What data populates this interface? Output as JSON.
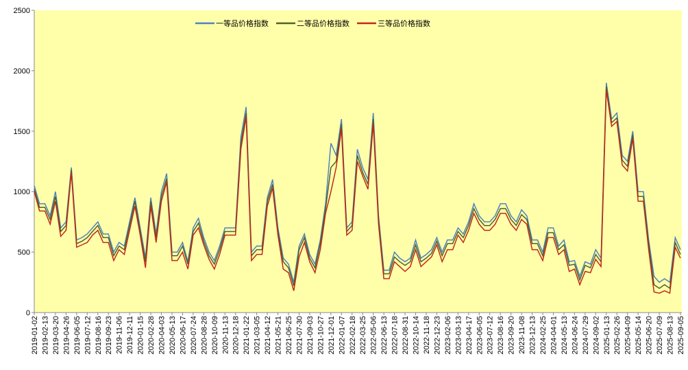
{
  "chart_data": {
    "type": "line",
    "categories": [
      "2019-01-02",
      null,
      "2019-02-13",
      null,
      "2019-03-20",
      null,
      "2019-04-26",
      null,
      "2019-06-05",
      null,
      "2019-07-12",
      null,
      "2019-08-16",
      null,
      "2019-09-23",
      null,
      "2019-11-06",
      null,
      "2019-12-11",
      null,
      "2020-01-15",
      null,
      "2020-02-28",
      null,
      "2020-04-03",
      null,
      "2020-05-13",
      null,
      "2020-06-17",
      null,
      "2020-07-24",
      null,
      "2020-08-28",
      null,
      "2020-10-09",
      null,
      "2020-11-13",
      null,
      "2020-12-18",
      null,
      "2021-01-22",
      null,
      "2021-03-05",
      null,
      "2021-04-12",
      null,
      "2021-05-21",
      null,
      "2021-06-25",
      null,
      "2021-07-30",
      null,
      "2021-09-03",
      null,
      "2021-10-27",
      null,
      "2021-12-01",
      null,
      "2022-01-07",
      null,
      "2022-02-18",
      null,
      "2022-03-25",
      null,
      "2022-05-06",
      null,
      "2022-06-13",
      null,
      "2022-07-18",
      null,
      "2022-08-31",
      null,
      "2022-10-14",
      null,
      "2022-11-18",
      null,
      "2022-12-23",
      null,
      "2023-02-06",
      null,
      "2023-03-13",
      null,
      "2023-04-17",
      null,
      "2023-06-05",
      null,
      "2023-07-12",
      null,
      "2023-08-16",
      null,
      "2023-09-20",
      null,
      "2023-11-08",
      null,
      "2023-12-13",
      null,
      "2024-02-25",
      null,
      "2024-04-01",
      null,
      "2024-05-13",
      null,
      "2024-06-24",
      null,
      "2024-07-29",
      null,
      "2024-09-02",
      null,
      "2025-01-13",
      null,
      "2025-02-26",
      null,
      "2025-04-09",
      null,
      "2025-05-14",
      null,
      "2025-06-20",
      null,
      "2025-07-09",
      null,
      "2025-08-13",
      null,
      "2025-09-05"
    ],
    "series": [
      {
        "name": "一等品价格指数",
        "color": "#4f81bd",
        "values": [
          1050,
          900,
          900,
          800,
          1000,
          700,
          750,
          1200,
          600,
          620,
          650,
          700,
          750,
          650,
          650,
          500,
          580,
          550,
          750,
          950,
          700,
          450,
          950,
          650,
          1000,
          1150,
          500,
          500,
          580,
          420,
          700,
          780,
          620,
          500,
          430,
          550,
          700,
          700,
          700,
          1450,
          1700,
          500,
          550,
          550,
          950,
          1100,
          700,
          450,
          400,
          250,
          550,
          650,
          480,
          400,
          600,
          900,
          1400,
          1300,
          1600,
          700,
          750,
          1350,
          1200,
          1100,
          1650,
          800,
          350,
          350,
          500,
          450,
          420,
          450,
          600,
          450,
          480,
          520,
          620,
          500,
          600,
          600,
          700,
          650,
          750,
          900,
          800,
          750,
          750,
          800,
          900,
          900,
          800,
          750,
          850,
          800,
          600,
          600,
          500,
          700,
          700,
          550,
          600,
          420,
          430,
          300,
          420,
          400,
          520,
          450,
          1900,
          1600,
          1650,
          1300,
          1250,
          1500,
          1000,
          1000,
          600,
          300,
          250,
          280,
          250,
          620,
          520
        ]
      },
      {
        "name": "二等品价格指数",
        "color": "#4f6228",
        "values": [
          1020,
          870,
          870,
          770,
          960,
          670,
          720,
          1180,
          570,
          590,
          620,
          670,
          720,
          620,
          620,
          470,
          550,
          520,
          720,
          920,
          670,
          420,
          920,
          620,
          960,
          1110,
          470,
          470,
          550,
          400,
          670,
          740,
          590,
          470,
          400,
          520,
          670,
          670,
          670,
          1400,
          1650,
          470,
          520,
          520,
          920,
          1060,
          670,
          420,
          370,
          220,
          520,
          620,
          450,
          370,
          570,
          860,
          1200,
          1250,
          1560,
          670,
          720,
          1300,
          1160,
          1060,
          1600,
          770,
          320,
          320,
          460,
          420,
          390,
          420,
          560,
          420,
          450,
          490,
          590,
          470,
          570,
          570,
          670,
          620,
          720,
          860,
          770,
          720,
          720,
          770,
          860,
          860,
          770,
          720,
          810,
          770,
          570,
          570,
          470,
          660,
          660,
          520,
          560,
          390,
          400,
          270,
          390,
          370,
          480,
          420,
          1870,
          1570,
          1610,
          1260,
          1210,
          1470,
          960,
          960,
          570,
          230,
          200,
          230,
          200,
          580,
          480
        ]
      },
      {
        "name": "三等品价格指数",
        "color": "#c0281c",
        "values": [
          1000,
          840,
          840,
          730,
          920,
          630,
          680,
          1160,
          540,
          560,
          580,
          640,
          680,
          580,
          580,
          430,
          520,
          480,
          680,
          880,
          640,
          370,
          880,
          580,
          920,
          1080,
          430,
          430,
          500,
          360,
          640,
          700,
          560,
          440,
          360,
          480,
          640,
          640,
          640,
          1350,
          1620,
          430,
          480,
          480,
          880,
          1030,
          640,
          360,
          330,
          180,
          460,
          580,
          420,
          330,
          520,
          820,
          1000,
          1200,
          1520,
          640,
          680,
          1250,
          1130,
          1020,
          1560,
          730,
          280,
          280,
          420,
          380,
          340,
          380,
          520,
          380,
          420,
          460,
          560,
          420,
          520,
          520,
          640,
          580,
          680,
          820,
          730,
          680,
          680,
          730,
          820,
          820,
          730,
          680,
          770,
          730,
          520,
          520,
          430,
          620,
          620,
          480,
          520,
          340,
          360,
          230,
          340,
          330,
          440,
          380,
          1840,
          1540,
          1580,
          1220,
          1170,
          1440,
          920,
          920,
          520,
          170,
          160,
          180,
          160,
          540,
          450
        ]
      }
    ],
    "ylim": [
      0,
      2500
    ],
    "yticks": [
      0,
      500,
      1000,
      1500,
      2000,
      2500
    ],
    "grid": false,
    "legend": "top"
  }
}
